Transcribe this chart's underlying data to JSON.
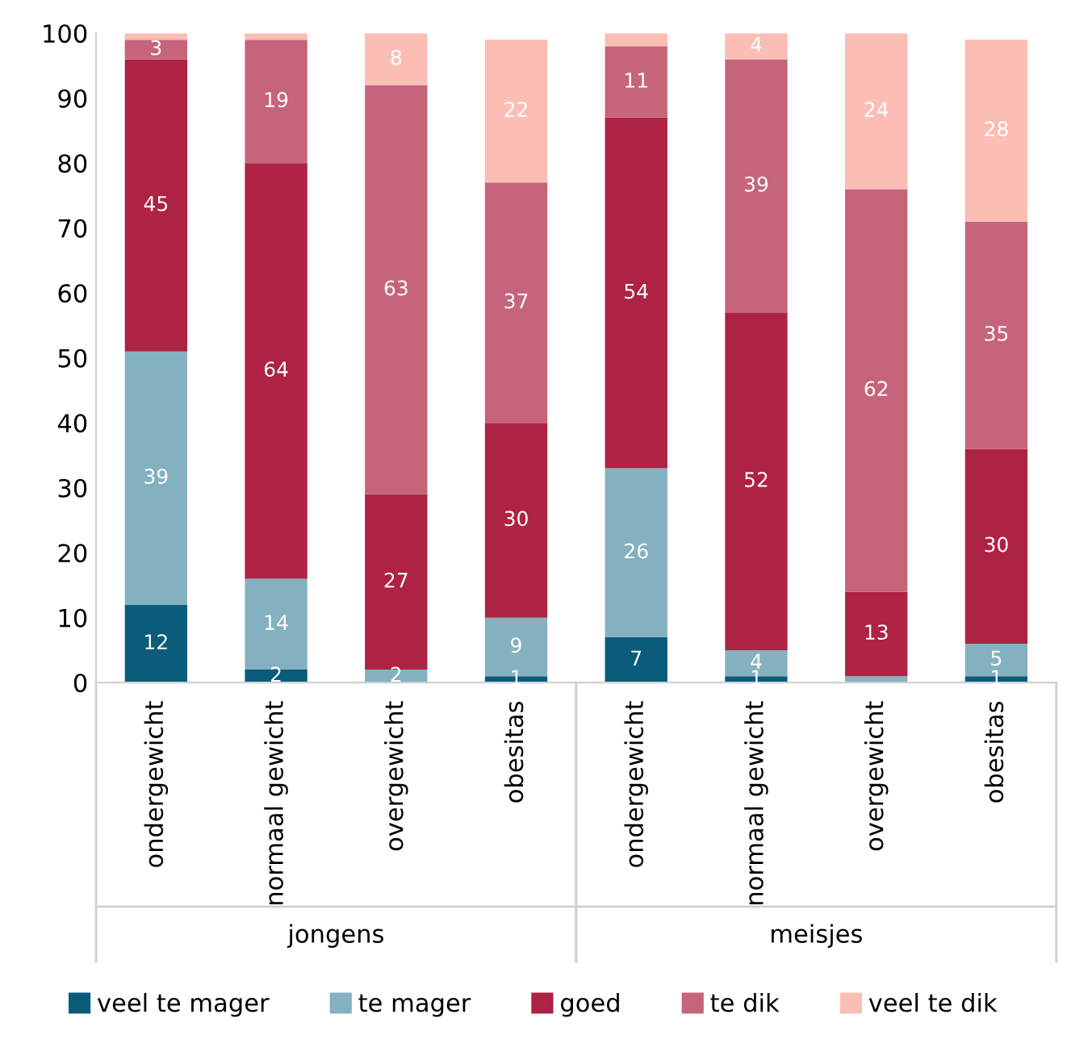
{
  "chart_data": {
    "type": "bar",
    "stacked": true,
    "categories": [
      "ondergewicht",
      "normaal gewicht",
      "overgewicht",
      "obesitas",
      "ondergewicht",
      "normaal gewicht",
      "overgewicht",
      "obesitas"
    ],
    "annotations": [
      "jongens",
      "meisjes"
    ],
    "series": [
      {
        "name": "veel te mager",
        "color": "#0a5c7a",
        "values": [
          12,
          2,
          0,
          1,
          7,
          1,
          0,
          1
        ],
        "value_labels": [
          "12",
          "2",
          null,
          "1",
          "7",
          "1",
          null,
          "1"
        ]
      },
      {
        "name": "te mager",
        "color": "#84b1c0",
        "values": [
          39,
          14,
          2,
          9,
          26,
          4,
          1,
          5
        ],
        "value_labels": [
          "39",
          "14",
          "2",
          "9",
          "26",
          "4",
          null,
          "5"
        ]
      },
      {
        "name": "goed",
        "color": "#ae2244",
        "values": [
          45,
          64,
          27,
          30,
          54,
          52,
          13,
          30
        ],
        "value_labels": [
          "45",
          "64",
          "27",
          "30",
          "54",
          "52",
          "13",
          "30"
        ]
      },
      {
        "name": "te dik",
        "color": "#c6647c",
        "values": [
          3,
          19,
          63,
          37,
          11,
          39,
          62,
          35
        ],
        "value_labels": [
          "3",
          "19",
          "63",
          "37",
          "11",
          "39",
          "62",
          "35"
        ]
      },
      {
        "name": "veel te dik",
        "color": "#fbbdb4",
        "values": [
          1,
          1,
          8,
          22,
          2,
          4,
          24,
          28
        ],
        "value_labels": [
          null,
          null,
          "8",
          "22",
          null,
          "4",
          "24",
          "28"
        ]
      }
    ],
    "ylim": [
      0,
      100
    ],
    "yticks": [
      0,
      10,
      20,
      30,
      40,
      50,
      60,
      70,
      80,
      90,
      100
    ],
    "grid": false,
    "legend": "bottom"
  }
}
